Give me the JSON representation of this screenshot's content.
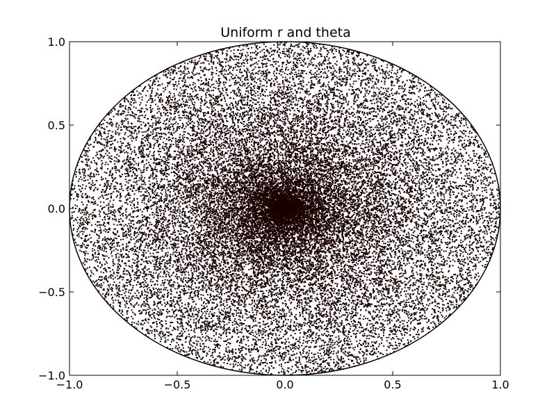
{
  "chart_data": {
    "type": "scatter",
    "title": "Uniform r and theta",
    "xlabel": "",
    "ylabel": "",
    "xlim": [
      -1.0,
      1.0
    ],
    "ylim": [
      -1.0,
      1.0
    ],
    "x_ticks": [
      -1.0,
      -0.5,
      0.0,
      0.5,
      1.0
    ],
    "x_tick_labels": [
      "−1.0",
      "−0.5",
      "0.0",
      "0.5",
      "1.0"
    ],
    "y_ticks": [
      -1.0,
      -0.5,
      0.0,
      0.5,
      1.0
    ],
    "y_tick_labels": [
      "−1.0",
      "−0.5",
      "0.0",
      "0.5",
      "1.0"
    ],
    "grid": false,
    "legend": "none",
    "series": [
      {
        "name": "points",
        "distribution": "uniform r and uniform theta inside unit circle",
        "r_range": [
          0,
          1
        ],
        "theta_range_deg": [
          0,
          360
        ],
        "point_count": 30000,
        "color": "#1a0000"
      }
    ],
    "boundary": {
      "shape": "circle",
      "radius": 1.0,
      "center": [
        0.0,
        0.0
      ],
      "color": "#000000"
    }
  }
}
